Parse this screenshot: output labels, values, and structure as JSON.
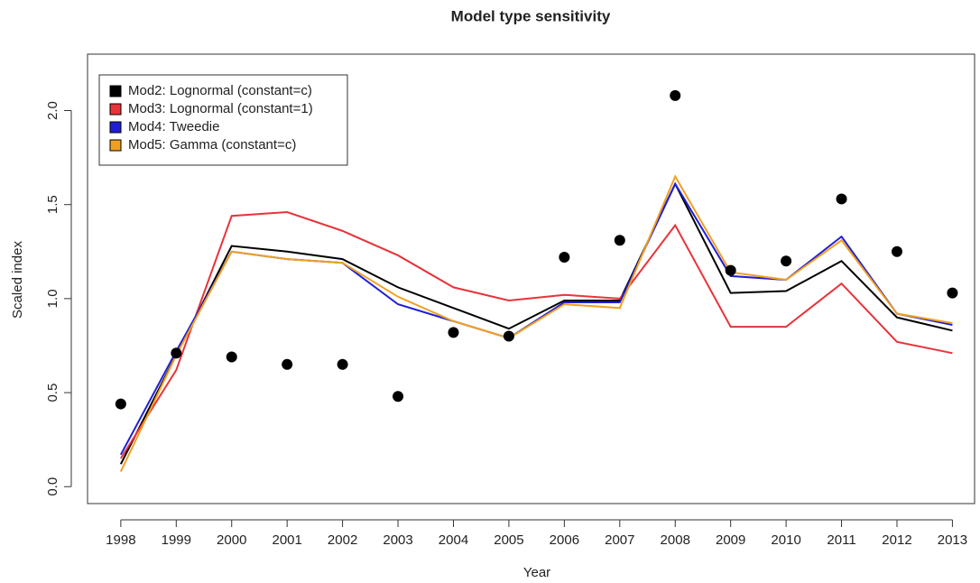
{
  "chart_data": {
    "type": "line",
    "title": "Model type sensitivity",
    "xlabel": "Year",
    "ylabel": "Scaled index",
    "x": [
      1998,
      1999,
      2000,
      2001,
      2002,
      2003,
      2004,
      2005,
      2006,
      2007,
      2008,
      2009,
      2010,
      2011,
      2012,
      2013
    ],
    "xlim": [
      1997.4,
      2013.4
    ],
    "xticks": [
      1998,
      1999,
      2000,
      2001,
      2002,
      2003,
      2004,
      2005,
      2006,
      2007,
      2008,
      2009,
      2010,
      2011,
      2012,
      2013
    ],
    "ylim": [
      -0.09,
      2.3
    ],
    "yticks": [
      {
        "value": 0,
        "label": "0.0"
      },
      0.5,
      {
        "value": 1,
        "label": "1.0"
      },
      1.5,
      {
        "value": 2,
        "label": "2.0"
      }
    ],
    "legend": "top-left",
    "points": {
      "color": "#000000",
      "values": [
        0.44,
        0.71,
        0.69,
        0.65,
        0.65,
        0.48,
        0.82,
        0.8,
        1.22,
        1.31,
        2.08,
        1.15,
        1.2,
        1.53,
        1.25,
        1.03
      ]
    },
    "series": [
      {
        "name": "Mod2: Lognormal (constant=c)",
        "color": "#000000",
        "values": [
          0.12,
          0.7,
          1.28,
          1.25,
          1.21,
          1.06,
          0.95,
          0.84,
          0.99,
          0.99,
          1.61,
          1.03,
          1.04,
          1.2,
          0.9,
          0.83
        ]
      },
      {
        "name": "Mod3: Lognormal (constant=1)",
        "color": "#e8333a",
        "values": [
          0.15,
          0.62,
          1.44,
          1.46,
          1.36,
          1.23,
          1.06,
          0.99,
          1.02,
          1.0,
          1.39,
          0.85,
          0.85,
          1.08,
          0.77,
          0.71
        ]
      },
      {
        "name": "Mod4: Tweedie",
        "color": "#1f1fd6",
        "values": [
          0.17,
          0.72,
          1.25,
          1.21,
          1.19,
          0.97,
          0.88,
          0.79,
          0.98,
          0.98,
          1.61,
          1.12,
          1.1,
          1.33,
          0.92,
          0.86
        ]
      },
      {
        "name": "Mod5: Gamma (constant=c)",
        "color": "#f0a020",
        "values": [
          0.08,
          0.7,
          1.25,
          1.21,
          1.19,
          1.01,
          0.88,
          0.79,
          0.97,
          0.95,
          1.65,
          1.14,
          1.1,
          1.31,
          0.92,
          0.87
        ]
      }
    ]
  }
}
